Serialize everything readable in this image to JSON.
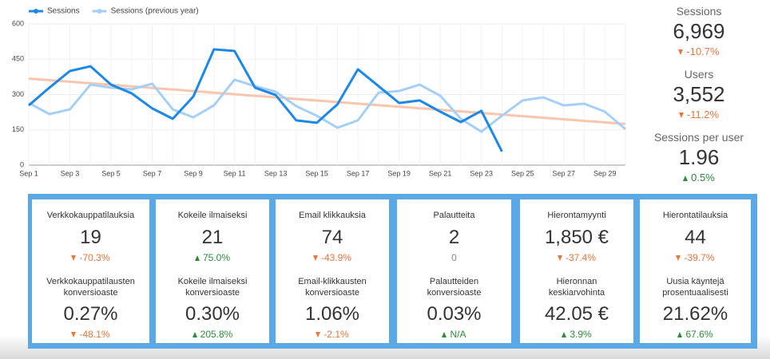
{
  "chart_data": {
    "type": "line",
    "categories": [
      "Sep 1",
      null,
      "Sep 3",
      null,
      "Sep 5",
      null,
      "Sep 7",
      null,
      "Sep 9",
      null,
      "Sep 11",
      null,
      "Sep 13",
      null,
      "Sep 15",
      null,
      "Sep 17",
      null,
      "Sep 19",
      null,
      "Sep 21",
      null,
      "Sep 23",
      null,
      "Sep 25",
      null,
      "Sep 27",
      null,
      "Sep 29",
      null
    ],
    "series": [
      {
        "name": "Sessions",
        "color": "#1e88e5",
        "values": [
          254,
          329,
          400,
          420,
          342,
          305,
          241,
          197,
          292,
          492,
          485,
          329,
          298,
          190,
          180,
          258,
          407,
          336,
          264,
          275,
          227,
          183,
          231,
          58,
          null,
          null,
          null,
          null,
          null,
          null
        ]
      },
      {
        "name": "Sessions (previous year)",
        "color": "#a5cff5",
        "values": [
          264,
          217,
          237,
          342,
          329,
          322,
          346,
          237,
          203,
          254,
          363,
          336,
          312,
          251,
          210,
          159,
          190,
          308,
          315,
          342,
          295,
          197,
          142,
          210,
          275,
          288,
          254,
          261,
          227,
          153
        ]
      }
    ],
    "trendline": true,
    "trend_color": "#f9c6ad",
    "ylim": [
      0,
      600
    ],
    "yticks": [
      0,
      150,
      300,
      450,
      600
    ],
    "grid": true,
    "legend": "top-left"
  },
  "side_scorecards": [
    {
      "label": "Sessions",
      "value": "6,969",
      "change": "-10.7%",
      "trend": "down"
    },
    {
      "label": "Users",
      "value": "3,552",
      "change": "-11.2%",
      "trend": "down"
    },
    {
      "label": "Sessions per user",
      "value": "1.96",
      "change": "0.5%",
      "trend": "up"
    }
  ],
  "cards": [
    {
      "label": "Verkkokauppatilauksia",
      "value": "19",
      "change": "-70.3%",
      "trend": "down",
      "label2": "Verkkokauppatilausten konversioaste",
      "value2": "0.27%",
      "change2": "-48.1%",
      "trend2": "down"
    },
    {
      "label": "Kokeile ilmaiseksi",
      "value": "21",
      "change": "75.0%",
      "trend": "up",
      "label2": "Kokeile ilmaiseksi konversioaste",
      "value2": "0.30%",
      "change2": "205.8%",
      "trend2": "up"
    },
    {
      "label": "Email klikkauksia",
      "value": "74",
      "change": "-43.9%",
      "trend": "down",
      "label2": "Email-klikkausten konversioaste",
      "value2": "1.06%",
      "change2": "-2.1%",
      "trend2": "down"
    },
    {
      "label": "Palautteita",
      "value": "2",
      "change": "0",
      "trend": null,
      "label2": "Palautteiden konversioaste",
      "value2": "0.03%",
      "change2": "N/A",
      "trend2": "up"
    },
    {
      "label": "Hierontamyynti",
      "value": "1,850 €",
      "change": "-37.4%",
      "trend": "down",
      "label2": "Hieronnan keskiarvohinta",
      "value2": "42.05 €",
      "change2": "3.9%",
      "trend2": "up"
    },
    {
      "label": "Hierontatilauksia",
      "value": "44",
      "change": "-39.7%",
      "trend": "down",
      "label2": "Uusia käyntejä prosentuaalisesti",
      "value2": "21.62%",
      "change2": "67.6%",
      "trend2": "up"
    }
  ]
}
